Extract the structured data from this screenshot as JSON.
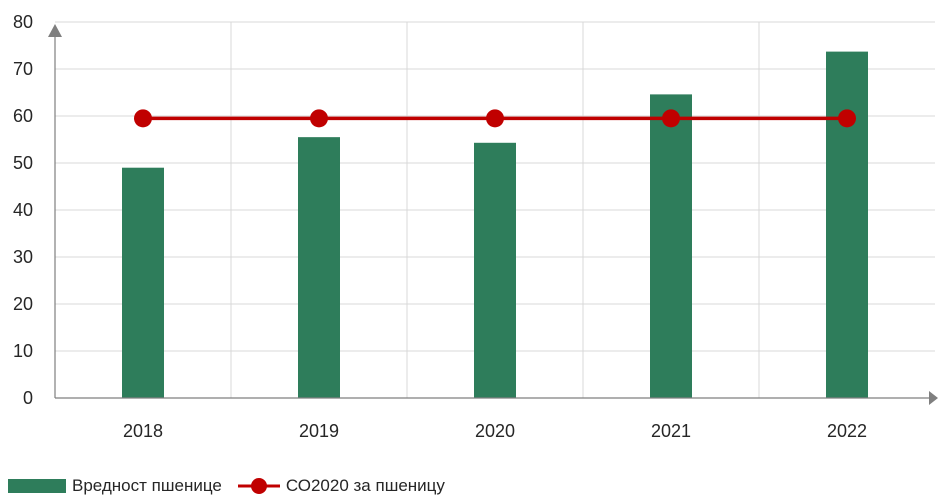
{
  "chart_data": {
    "type": "bar",
    "categories": [
      "2018",
      "2019",
      "2020",
      "2021",
      "2022"
    ],
    "series": [
      {
        "name": "Вредност пшенице",
        "type": "bar",
        "color": "#2e7d5b",
        "values": [
          49,
          55.5,
          54.3,
          64.6,
          73.7
        ]
      },
      {
        "name": "СО2020 за пшеницу",
        "type": "line",
        "color": "#c00000",
        "values": [
          59.5,
          59.5,
          59.5,
          59.5,
          59.5
        ]
      }
    ],
    "yticks": [
      "0",
      "10",
      "20",
      "30",
      "40",
      "50",
      "60",
      "70",
      "80"
    ],
    "ylim": [
      0,
      80
    ],
    "grid": true,
    "legend_position": "bottom-left"
  }
}
